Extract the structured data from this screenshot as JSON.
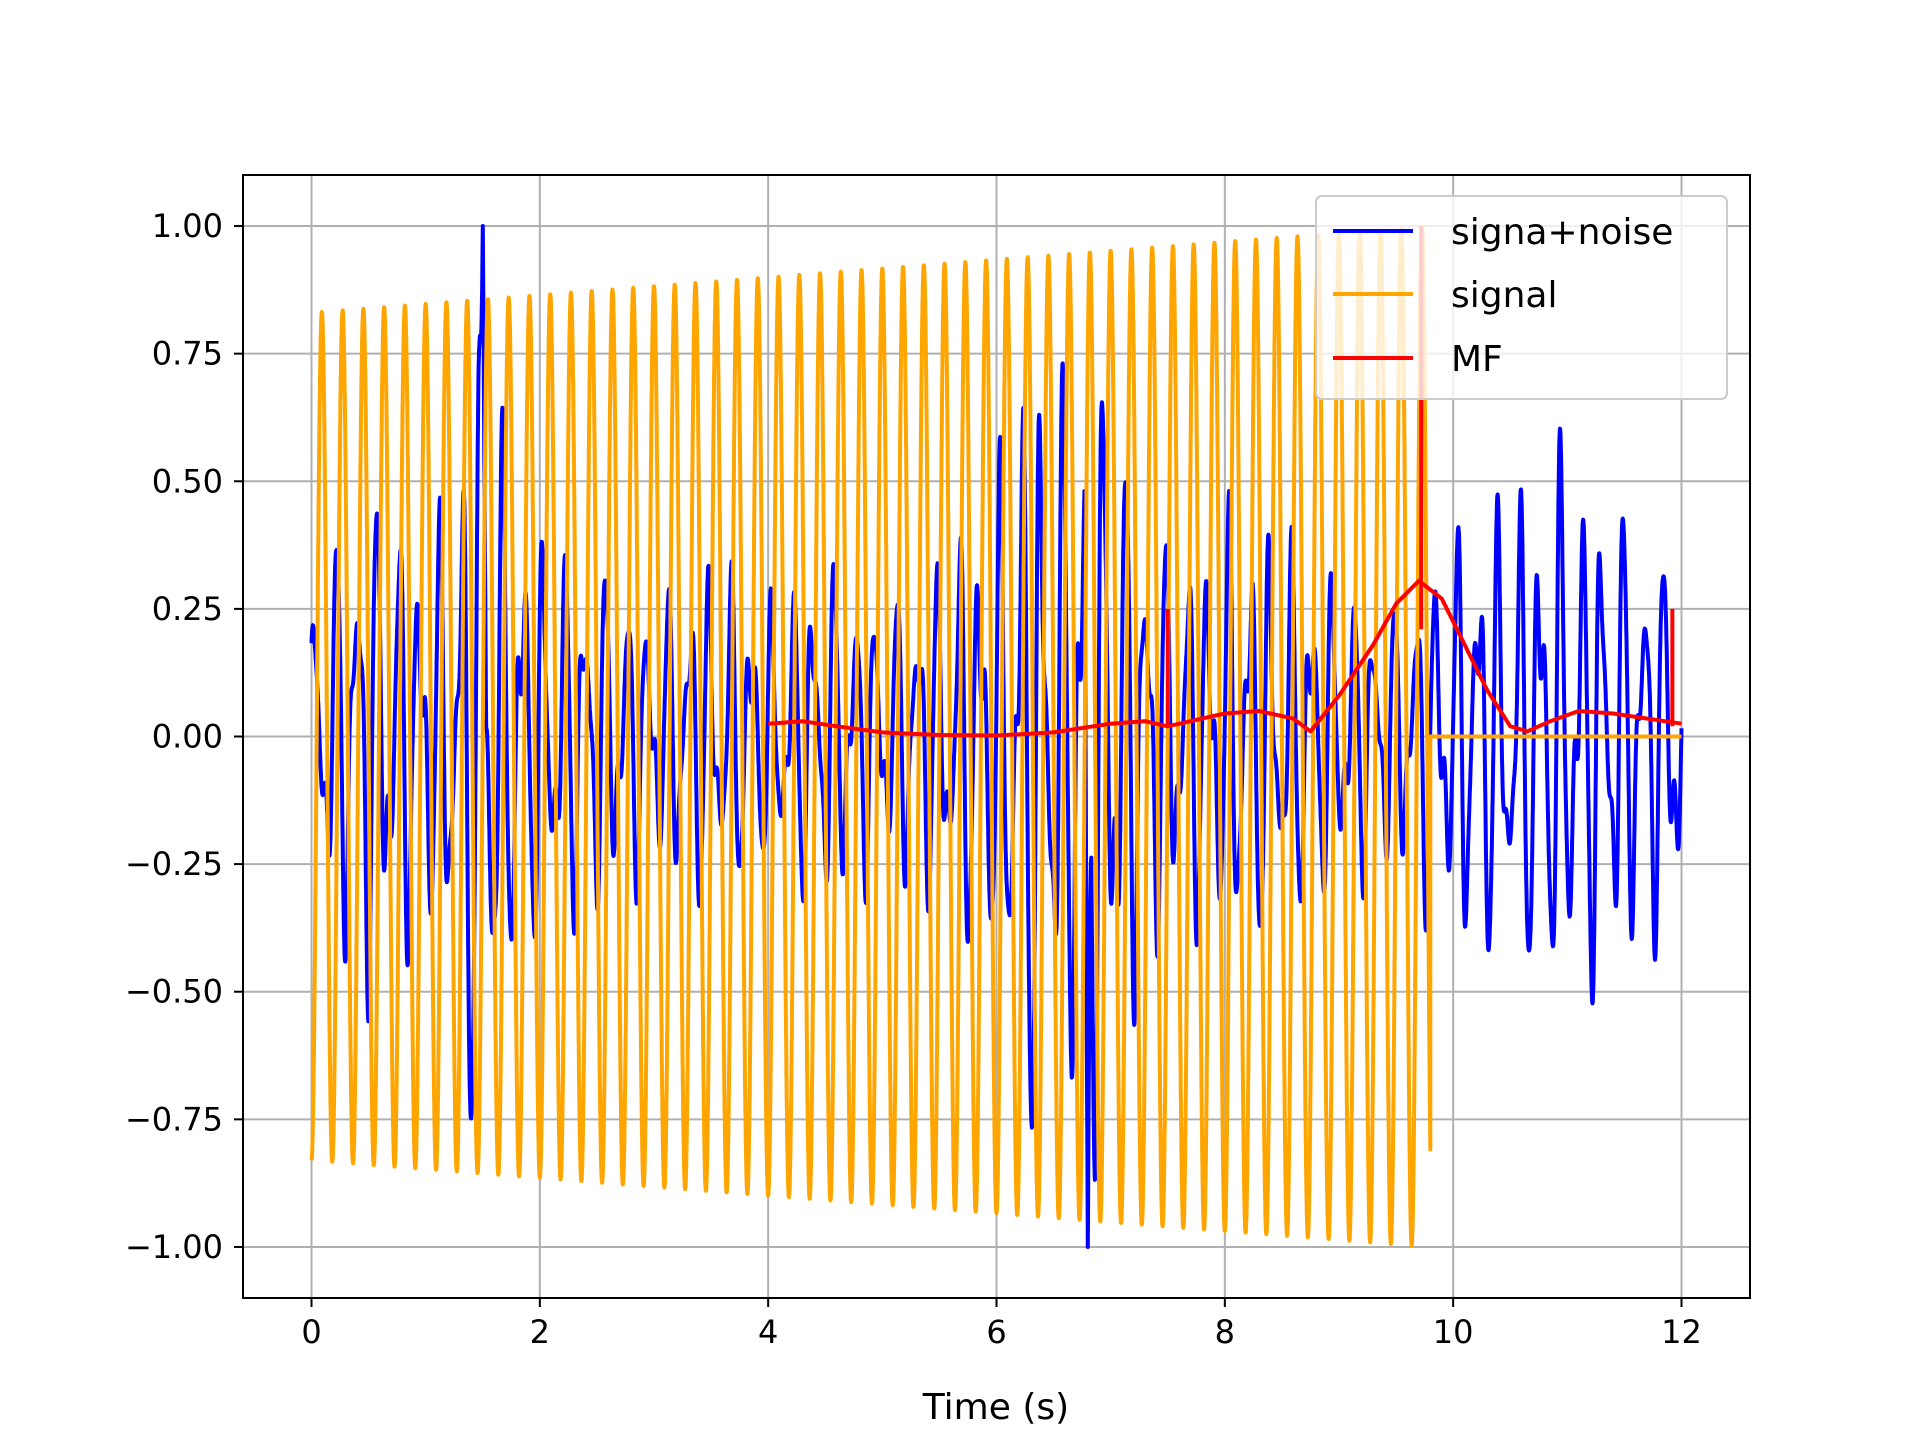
{
  "chart_data": {
    "type": "line",
    "title": "",
    "xlabel": "Time (s)",
    "ylabel": "",
    "xlim": [
      -0.6,
      12.6
    ],
    "ylim": [
      -1.1,
      1.1
    ],
    "xticks": [
      0,
      2,
      4,
      6,
      8,
      10,
      12
    ],
    "xtick_labels": [
      "0",
      "2",
      "4",
      "6",
      "8",
      "10",
      "12"
    ],
    "yticks": [
      1.0,
      0.75,
      0.5,
      0.25,
      0.0,
      -0.25,
      -0.5,
      -0.75,
      -1.0
    ],
    "ytick_labels": [
      "1.00",
      "0.75",
      "0.50",
      "0.25",
      "0.00",
      "−0.25",
      "−0.50",
      "−0.75",
      "−1.00"
    ],
    "grid": true,
    "legend_position": "top-right",
    "series": [
      {
        "name": "signa+noise",
        "color": "#0000ff",
        "style": "noisy-oscillation",
        "x_range": [
          0,
          12
        ],
        "approx_frequency_hz": 5.5,
        "envelope": [
          [
            0.0,
            0.3
          ],
          [
            0.15,
            0.42
          ],
          [
            0.5,
            0.6
          ],
          [
            0.75,
            0.5
          ],
          [
            1.0,
            0.45
          ],
          [
            1.3,
            0.55
          ],
          [
            1.4,
            0.93
          ],
          [
            1.5,
            1.0
          ],
          [
            1.7,
            0.6
          ],
          [
            2.0,
            0.45
          ],
          [
            2.5,
            0.4
          ],
          [
            3.0,
            0.3
          ],
          [
            3.5,
            0.4
          ],
          [
            4.0,
            0.3
          ],
          [
            4.5,
            0.4
          ],
          [
            5.0,
            0.3
          ],
          [
            5.5,
            0.4
          ],
          [
            5.8,
            0.5
          ],
          [
            6.0,
            0.55
          ],
          [
            6.3,
            0.94
          ],
          [
            6.5,
            0.7
          ],
          [
            6.8,
            1.0
          ],
          [
            7.2,
            0.6
          ],
          [
            7.6,
            0.4
          ],
          [
            8.0,
            0.5
          ],
          [
            8.5,
            0.45
          ],
          [
            9.0,
            0.35
          ],
          [
            9.5,
            0.3
          ],
          [
            9.8,
            0.4
          ],
          [
            10.2,
            0.5
          ],
          [
            10.7,
            0.55
          ],
          [
            10.9,
            0.63
          ],
          [
            11.3,
            0.55
          ],
          [
            11.7,
            0.45
          ],
          [
            12.0,
            0.45
          ]
        ],
        "peak_max": [
          1.5,
          1.0
        ],
        "peak_min": [
          6.8,
          -1.0
        ]
      },
      {
        "name": "signal",
        "color": "#ffa500",
        "style": "sinusoid",
        "x_range": [
          0,
          9.8
        ],
        "frequency_hz": 5.5,
        "amplitude_start": 0.83,
        "amplitude_end": 1.0,
        "value_after_end": 0.0,
        "x_after_end": [
          9.8,
          12
        ]
      },
      {
        "name": "MF",
        "color": "#ff0000",
        "style": "line",
        "x": [
          4.0,
          4.3,
          4.6,
          5.0,
          5.5,
          6.0,
          6.5,
          7.0,
          7.3,
          7.5,
          7.8,
          8.0,
          8.3,
          8.6,
          8.75,
          9.0,
          9.3,
          9.5,
          9.7,
          9.9,
          10.1,
          10.3,
          10.5,
          10.65,
          10.85,
          11.1,
          11.4,
          11.7,
          12.0
        ],
        "values": [
          0.025,
          0.03,
          0.02,
          0.008,
          0.003,
          0.002,
          0.008,
          0.025,
          0.03,
          0.02,
          0.035,
          0.045,
          0.05,
          0.035,
          0.01,
          0.08,
          0.18,
          0.26,
          0.305,
          0.27,
          0.18,
          0.09,
          0.02,
          0.01,
          0.03,
          0.05,
          0.045,
          0.035,
          0.025
        ],
        "spikes": [
          {
            "x": 7.5,
            "top": 0.25,
            "bottom": 0.02
          },
          {
            "x": 9.72,
            "top": 1.0,
            "bottom": 0.21
          },
          {
            "x": 11.92,
            "top": 0.25,
            "bottom": 0.02
          }
        ]
      }
    ]
  }
}
